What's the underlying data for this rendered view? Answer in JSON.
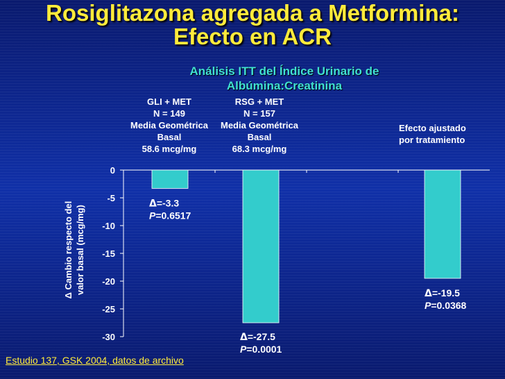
{
  "slide": {
    "title_line1": "Rosiglitazona agregada a Metformina:",
    "title_line2": "Efecto en ACR",
    "footnote": "Estudio 137, GSK 2004, datos de archivo"
  },
  "colors": {
    "title": "#ffeb3b",
    "subtitle": "#40e0d0",
    "bar_fill": "#33cccc",
    "text": "#ffffff"
  },
  "groups": [
    {
      "line1": "GLI + MET",
      "line2": "N = 149",
      "line3": "Media Geométrica",
      "line4": "Basal",
      "line5": "58.6 mcg/mg"
    },
    {
      "line1": "RSG + MET",
      "line2": "N = 157",
      "line3": "Media Geométrica",
      "line4": "Basal",
      "line5": "68.3 mcg/mg"
    }
  ],
  "adjusted_label": {
    "line1": "Efecto ajustado",
    "line2": "por tratamiento"
  },
  "chart_data": {
    "type": "bar",
    "title": "Análisis ITT del Índice Urinario de Albúmina:Creatinina",
    "ylabel_line1": "Δ Cambio respecto del",
    "ylabel_line2": "valor basal (mcg/mg)",
    "ylim": [
      -30,
      0
    ],
    "yticks": [
      0,
      -5,
      -10,
      -15,
      -20,
      -25,
      -30
    ],
    "categories": [
      "GLI + MET",
      "RSG + MET",
      "Efecto ajustado por tratamiento"
    ],
    "values": [
      -3.3,
      -27.5,
      -19.5
    ],
    "annotations": [
      {
        "delta": "=-3.3",
        "p": "=0.6517"
      },
      {
        "delta": "=-27.5",
        "p": "=0.0001"
      },
      {
        "delta": "=-19.5",
        "p": "=0.0368"
      }
    ],
    "grid": false
  }
}
